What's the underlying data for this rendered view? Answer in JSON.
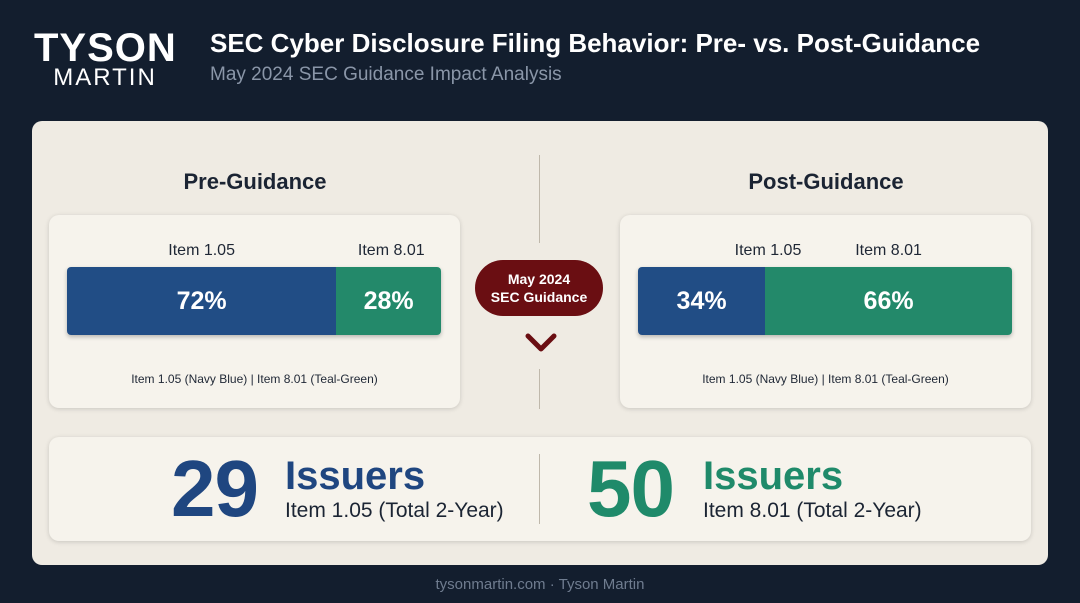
{
  "brand": {
    "line1": "TYSON",
    "line2": "MARTIN"
  },
  "header": {
    "title": "SEC Cyber Disclosure Filing Behavior: Pre- vs. Post-Guidance",
    "subtitle": "May 2024 SEC Guidance Impact Analysis"
  },
  "pre": {
    "heading": "Pre-Guidance",
    "label_a": "Item 1.05",
    "label_b": "Item 8.01",
    "value_a": "72%",
    "value_b": "28%",
    "legend": "Item 1.05 (Navy Blue)  |  Item 8.01 (Teal-Green)"
  },
  "post": {
    "heading": "Post-Guidance",
    "label_a": "Item 1.05",
    "label_b": "Item 8.01",
    "value_a": "34%",
    "value_b": "66%",
    "legend": "Item 1.05 (Navy Blue)  |  Item 8.01 (Teal-Green)"
  },
  "divider_badge": {
    "line1": "May 2024",
    "line2": "SEC Guidance",
    "icon": "chevron-down-icon"
  },
  "stats": {
    "left": {
      "number": "29",
      "word": "Issuers",
      "desc": "Item 1.05 (Total 2-Year)"
    },
    "right": {
      "number": "50",
      "word": "Issuers",
      "desc": "Item 8.01 (Total 2-Year)"
    }
  },
  "footer": "tysonmartin.com · Tyson Martin",
  "colors": {
    "navy": "#214d85",
    "teal": "#23896a",
    "badge": "#6a0e12",
    "background": "#131e2e",
    "panel": "#efebe3"
  },
  "chart_data": [
    {
      "type": "bar",
      "title": "Pre-Guidance",
      "stacked": true,
      "orientation": "horizontal",
      "series": [
        {
          "name": "Item 1.05",
          "values": [
            72
          ],
          "color": "#214d85"
        },
        {
          "name": "Item 8.01",
          "values": [
            28
          ],
          "color": "#23896a"
        }
      ],
      "unit": "%"
    },
    {
      "type": "bar",
      "title": "Post-Guidance",
      "stacked": true,
      "orientation": "horizontal",
      "series": [
        {
          "name": "Item 1.05",
          "values": [
            34
          ],
          "color": "#214d85"
        },
        {
          "name": "Item 8.01",
          "values": [
            66
          ],
          "color": "#23896a"
        }
      ],
      "unit": "%"
    }
  ]
}
